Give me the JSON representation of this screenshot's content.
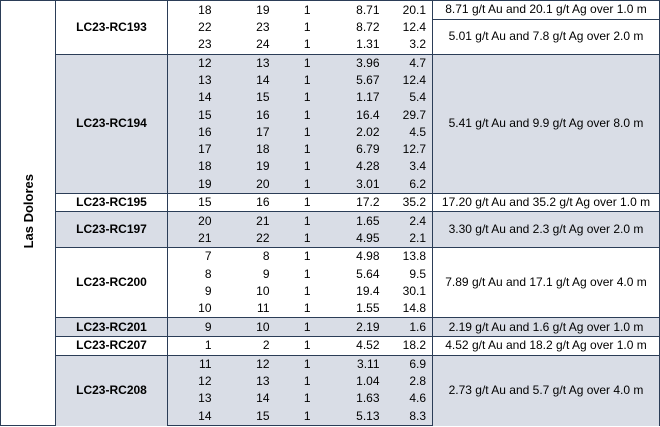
{
  "region": "Las Dolores",
  "holes": [
    {
      "id": "LC23-RC193",
      "intervals": [
        {
          "rows": [
            [
              18,
              19,
              1,
              8.71,
              20.1
            ]
          ],
          "text": "8.71 g/t Au and 20.1 g/t Ag over 1.0 m"
        },
        {
          "rows": [
            [
              22,
              23,
              1,
              8.72,
              12.4
            ],
            [
              23,
              24,
              1,
              1.31,
              3.2
            ]
          ],
          "text": "5.01 g/t Au and 7.8 g/t Ag over 2.0 m"
        }
      ]
    },
    {
      "id": "LC23-RC194",
      "intervals": [
        {
          "rows": [
            [
              12,
              13,
              1,
              3.96,
              4.7
            ],
            [
              13,
              14,
              1,
              5.67,
              12.4
            ],
            [
              14,
              15,
              1,
              1.17,
              5.4
            ],
            [
              15,
              16,
              1,
              16.4,
              29.7
            ],
            [
              16,
              17,
              1,
              2.02,
              4.5
            ],
            [
              17,
              18,
              1,
              6.79,
              12.7
            ],
            [
              18,
              19,
              1,
              4.28,
              3.4
            ],
            [
              19,
              20,
              1,
              3.01,
              6.2
            ]
          ],
          "text": "5.41 g/t Au and 9.9 g/t Ag over 8.0 m"
        }
      ]
    },
    {
      "id": "LC23-RC195",
      "intervals": [
        {
          "rows": [
            [
              15,
              16,
              1,
              17.2,
              35.2
            ]
          ],
          "text": "17.20 g/t Au and 35.2 g/t Ag over 1.0 m"
        }
      ]
    },
    {
      "id": "LC23-RC197",
      "intervals": [
        {
          "rows": [
            [
              20,
              21,
              1,
              1.65,
              2.4
            ],
            [
              21,
              22,
              1,
              4.95,
              2.1
            ]
          ],
          "text": "3.30 g/t Au and 2.3 g/t Ag over 2.0 m"
        }
      ]
    },
    {
      "id": "LC23-RC200",
      "intervals": [
        {
          "rows": [
            [
              7,
              8,
              1,
              4.98,
              13.8
            ],
            [
              8,
              9,
              1,
              5.64,
              9.5
            ],
            [
              9,
              10,
              1,
              19.4,
              30.1
            ],
            [
              10,
              11,
              1,
              1.55,
              14.8
            ]
          ],
          "text": "7.89 g/t Au and 17.1 g/t Ag over 4.0 m"
        }
      ]
    },
    {
      "id": "LC23-RC201",
      "intervals": [
        {
          "rows": [
            [
              9,
              10,
              1,
              2.19,
              1.6
            ]
          ],
          "text": "2.19 g/t Au and 1.6 g/t Ag over 1.0 m"
        }
      ]
    },
    {
      "id": "LC23-RC207",
      "intervals": [
        {
          "rows": [
            [
              1,
              2,
              1,
              4.52,
              18.2
            ]
          ],
          "text": "4.52 g/t Au and 18.2 g/t Ag over 1.0 m"
        }
      ]
    },
    {
      "id": "LC23-RC208",
      "intervals": [
        {
          "rows": [
            [
              11,
              12,
              1,
              3.11,
              6.9
            ],
            [
              12,
              13,
              1,
              1.04,
              2.8
            ],
            [
              13,
              14,
              1,
              1.63,
              4.6
            ],
            [
              14,
              15,
              1,
              5.13,
              8.3
            ]
          ],
          "text": "2.73 g/t Au and 5.7 g/t Ag over 4.0 m"
        }
      ]
    }
  ]
}
